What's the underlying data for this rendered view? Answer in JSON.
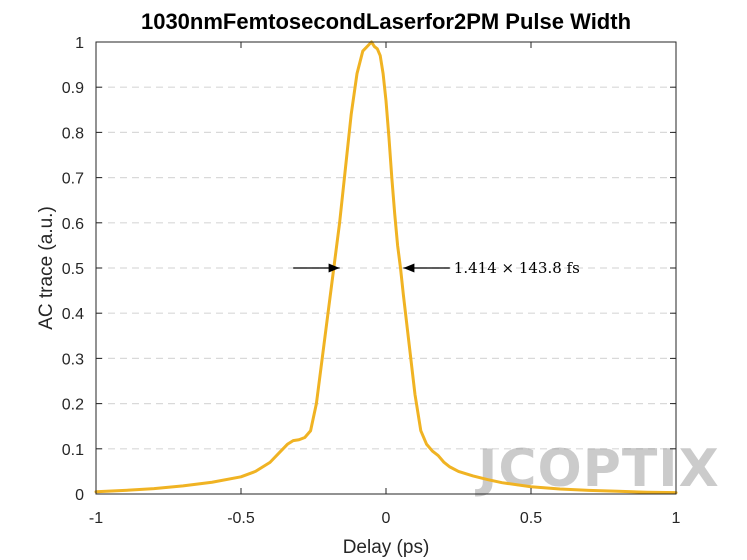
{
  "chart_data": {
    "type": "line",
    "title": "1030nmFemtosecondLaserfor2PM Pulse Width",
    "xlabel": "Delay (ps)",
    "ylabel": "AC trace (a.u.)",
    "xlim": [
      -1,
      1
    ],
    "ylim": [
      0,
      1
    ],
    "x_ticks": [
      -1,
      -0.5,
      0,
      0.5,
      1
    ],
    "x_tick_labels": [
      "-1",
      "-0.5",
      "0",
      "0.5",
      "1"
    ],
    "y_ticks": [
      0,
      0.1,
      0.2,
      0.3,
      0.4,
      0.5,
      0.6,
      0.7,
      0.8,
      0.9,
      1
    ],
    "y_tick_labels": [
      "0",
      "0.1",
      "0.2",
      "0.3",
      "0.4",
      "0.5",
      "0.6",
      "0.7",
      "0.8",
      "0.9",
      "1"
    ],
    "grid": "horizontal-dashed",
    "series": [
      {
        "color": "#f0b323",
        "x": [
          -1.0,
          -0.9,
          -0.8,
          -0.7,
          -0.6,
          -0.5,
          -0.45,
          -0.4,
          -0.37,
          -0.34,
          -0.32,
          -0.3,
          -0.28,
          -0.26,
          -0.24,
          -0.22,
          -0.2,
          -0.18,
          -0.16,
          -0.14,
          -0.12,
          -0.1,
          -0.08,
          -0.065,
          -0.05,
          -0.04,
          -0.03,
          -0.02,
          -0.01,
          0.0,
          0.01,
          0.02,
          0.03,
          0.04,
          0.05,
          0.06,
          0.08,
          0.1,
          0.12,
          0.14,
          0.16,
          0.18,
          0.2,
          0.22,
          0.25,
          0.3,
          0.35,
          0.4,
          0.5,
          0.6,
          0.7,
          0.8,
          0.9,
          1.0
        ],
        "y": [
          0.005,
          0.008,
          0.012,
          0.018,
          0.026,
          0.038,
          0.05,
          0.07,
          0.09,
          0.11,
          0.118,
          0.12,
          0.125,
          0.14,
          0.2,
          0.3,
          0.4,
          0.5,
          0.6,
          0.72,
          0.84,
          0.93,
          0.98,
          0.99,
          1.0,
          0.99,
          0.985,
          0.97,
          0.93,
          0.87,
          0.79,
          0.7,
          0.62,
          0.55,
          0.5,
          0.44,
          0.33,
          0.22,
          0.14,
          0.11,
          0.095,
          0.085,
          0.07,
          0.06,
          0.05,
          0.04,
          0.032,
          0.025,
          0.016,
          0.011,
          0.008,
          0.006,
          0.004,
          0.003
        ]
      }
    ],
    "annotation": {
      "text": "1.414 × 143.8 fs",
      "y": 0.5,
      "left_arrow_x": [
        -0.32,
        -0.16
      ],
      "right_arrow_x": [
        0.22,
        0.06
      ]
    },
    "watermark": "JCOPTIX"
  }
}
